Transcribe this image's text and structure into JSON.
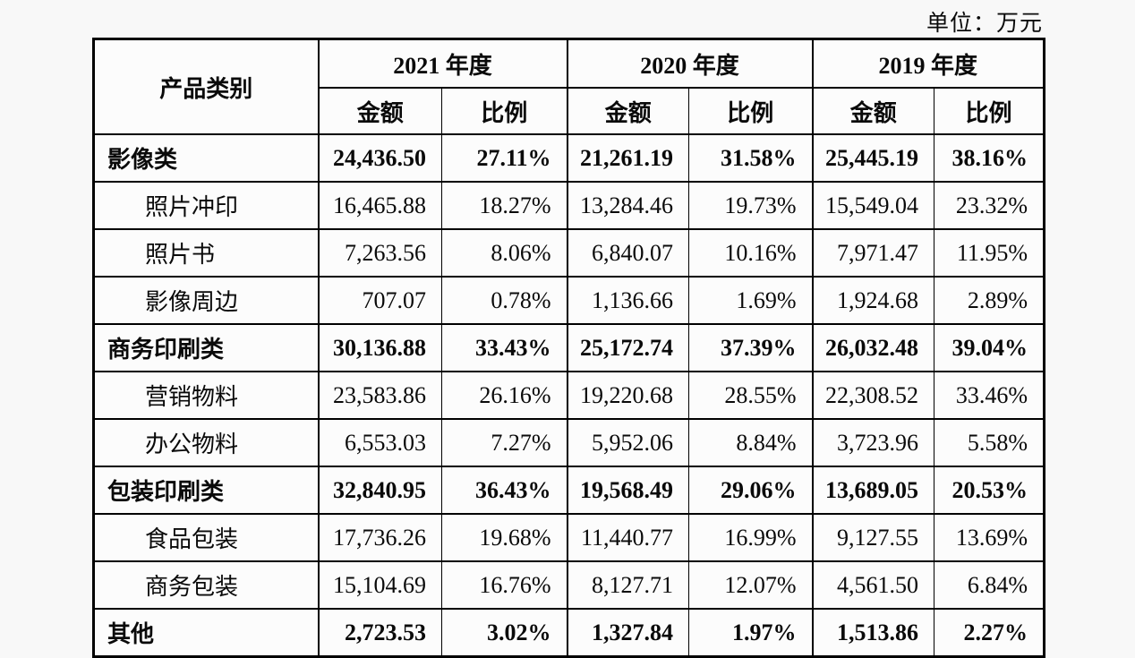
{
  "unit_label": "单位：万元",
  "table": {
    "category_header": "产品类别",
    "year_headers": [
      "2021 年度",
      "2020 年度",
      "2019 年度"
    ],
    "sub_headers": [
      "金额",
      "比例"
    ],
    "rows": [
      {
        "label": "影像类",
        "bold": true,
        "indent": false,
        "values": [
          "24,436.50",
          "27.11%",
          "21,261.19",
          "31.58%",
          "25,445.19",
          "38.16%"
        ]
      },
      {
        "label": "照片冲印",
        "bold": false,
        "indent": true,
        "values": [
          "16,465.88",
          "18.27%",
          "13,284.46",
          "19.73%",
          "15,549.04",
          "23.32%"
        ]
      },
      {
        "label": "照片书",
        "bold": false,
        "indent": true,
        "values": [
          "7,263.56",
          "8.06%",
          "6,840.07",
          "10.16%",
          "7,971.47",
          "11.95%"
        ]
      },
      {
        "label": "影像周边",
        "bold": false,
        "indent": true,
        "values": [
          "707.07",
          "0.78%",
          "1,136.66",
          "1.69%",
          "1,924.68",
          "2.89%"
        ]
      },
      {
        "label": "商务印刷类",
        "bold": true,
        "indent": false,
        "values": [
          "30,136.88",
          "33.43%",
          "25,172.74",
          "37.39%",
          "26,032.48",
          "39.04%"
        ]
      },
      {
        "label": "营销物料",
        "bold": false,
        "indent": true,
        "values": [
          "23,583.86",
          "26.16%",
          "19,220.68",
          "28.55%",
          "22,308.52",
          "33.46%"
        ]
      },
      {
        "label": "办公物料",
        "bold": false,
        "indent": true,
        "values": [
          "6,553.03",
          "7.27%",
          "5,952.06",
          "8.84%",
          "3,723.96",
          "5.58%"
        ]
      },
      {
        "label": "包装印刷类",
        "bold": true,
        "indent": false,
        "values": [
          "32,840.95",
          "36.43%",
          "19,568.49",
          "29.06%",
          "13,689.05",
          "20.53%"
        ]
      },
      {
        "label": "食品包装",
        "bold": false,
        "indent": true,
        "values": [
          "17,736.26",
          "19.68%",
          "11,440.77",
          "16.99%",
          "9,127.55",
          "13.69%"
        ]
      },
      {
        "label": "商务包装",
        "bold": false,
        "indent": true,
        "values": [
          "15,104.69",
          "16.76%",
          "8,127.71",
          "12.07%",
          "4,561.50",
          "6.84%"
        ]
      },
      {
        "label": "其他",
        "bold": true,
        "indent": false,
        "values": [
          "2,723.53",
          "3.02%",
          "1,327.84",
          "1.97%",
          "1,513.86",
          "2.27%"
        ]
      }
    ]
  }
}
